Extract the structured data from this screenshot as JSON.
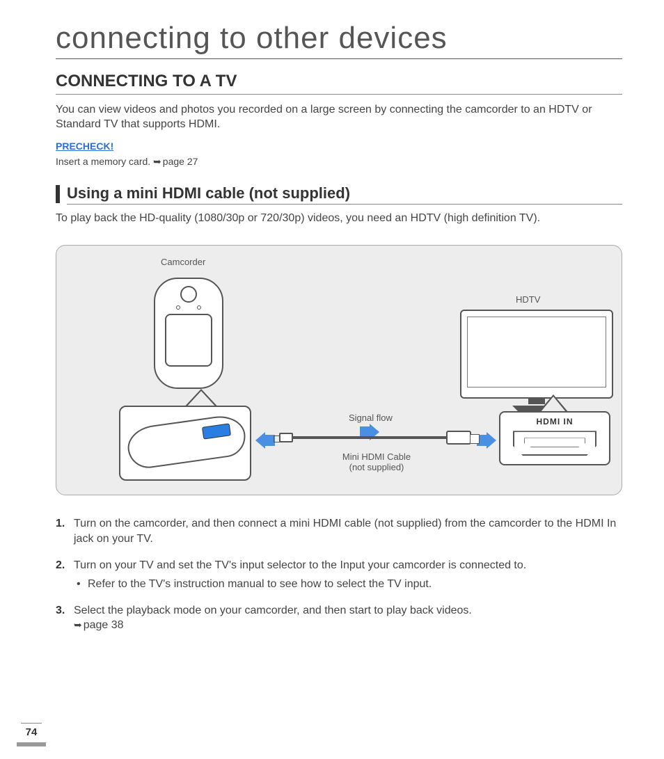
{
  "page": {
    "number": "74",
    "chapter_title": "connecting to other devices",
    "section_title": "CONNECTING TO A TV",
    "intro": "You can view videos and photos you recorded on a large screen by connecting the camcorder to an HDTV or Standard TV that supports HDMI.",
    "precheck_label": "PRECHECK!",
    "precheck_text": "Insert a memory card. ",
    "precheck_ref": "page 27",
    "sub_title": "Using a mini HDMI cable (not supplied)",
    "sub_text": "To play back the HD-quality (1080/30p or 720/30p) videos, you need an HDTV (high definition TV)."
  },
  "diagram": {
    "camcorder_label": "Camcorder",
    "hdtv_label": "HDTV",
    "signal_flow_label": "Signal flow",
    "cable_label": "Mini HDMI Cable (not supplied)",
    "hdmi_in_label": "HDMI IN",
    "colors": {
      "panel_bg": "#ededed",
      "border": "#555555",
      "arrow": "#4a90e2",
      "port_highlight": "#2a7de1"
    }
  },
  "steps": {
    "s1": "Turn on the camcorder, and then connect a mini HDMI cable (not supplied) from the camcorder to the HDMI In jack on your TV.",
    "s2": "Turn on your TV and set the TV's input selector to the Input your camcorder is connected to.",
    "s2_bullet": "Refer to the TV's instruction manual to see how to select the TV input.",
    "s3": "Select the playback mode on your camcorder, and then start to play back videos. ",
    "s3_ref": "page 38"
  }
}
